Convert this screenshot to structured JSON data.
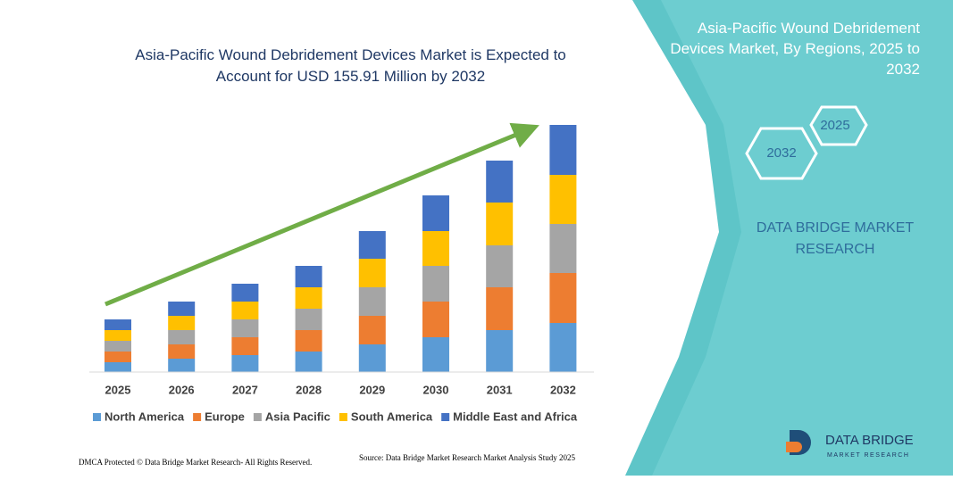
{
  "chart_data": {
    "type": "stacked-bar",
    "title": "Asia-Pacific Wound Debridement Devices Market is Expected to Account for USD 155.91 Million by 2032",
    "categories": [
      "2025",
      "2026",
      "2027",
      "2028",
      "2029",
      "2030",
      "2031",
      "2032"
    ],
    "series": [
      {
        "name": "North America",
        "color": "#5b9bd5",
        "values": [
          11,
          15,
          19,
          23,
          31,
          39,
          47,
          55
        ]
      },
      {
        "name": "Europe",
        "color": "#ed7d31",
        "values": [
          12,
          16,
          20,
          24,
          32,
          40,
          48,
          56
        ]
      },
      {
        "name": "Asia Pacific",
        "color": "#a5a5a5",
        "values": [
          12,
          16,
          20,
          24,
          32,
          40,
          47,
          55
        ]
      },
      {
        "name": "South America",
        "color": "#ffc000",
        "values": [
          12,
          16,
          20,
          24,
          32,
          39,
          48,
          55
        ]
      },
      {
        "name": "Middle East and Africa",
        "color": "#4472c4",
        "values": [
          12,
          16,
          20,
          24,
          31,
          40,
          47,
          56
        ]
      }
    ],
    "legend": "bottom"
  },
  "panel": {
    "title": "Asia-Pacific Wound Debridement Devices Market, By Regions, 2025 to 2032",
    "hex_end": "2032",
    "hex_start": "2025",
    "brand": "DATA BRIDGE MARKET RESEARCH"
  },
  "footer": {
    "dmca": "DMCA Protected © Data Bridge Market Research- All Rights Reserved.",
    "source": "Source: Data Bridge Market Research Market Analysis Study 2025"
  },
  "logo": {
    "name": "DATA BRIDGE",
    "tagline": "MARKET RESEARCH"
  }
}
